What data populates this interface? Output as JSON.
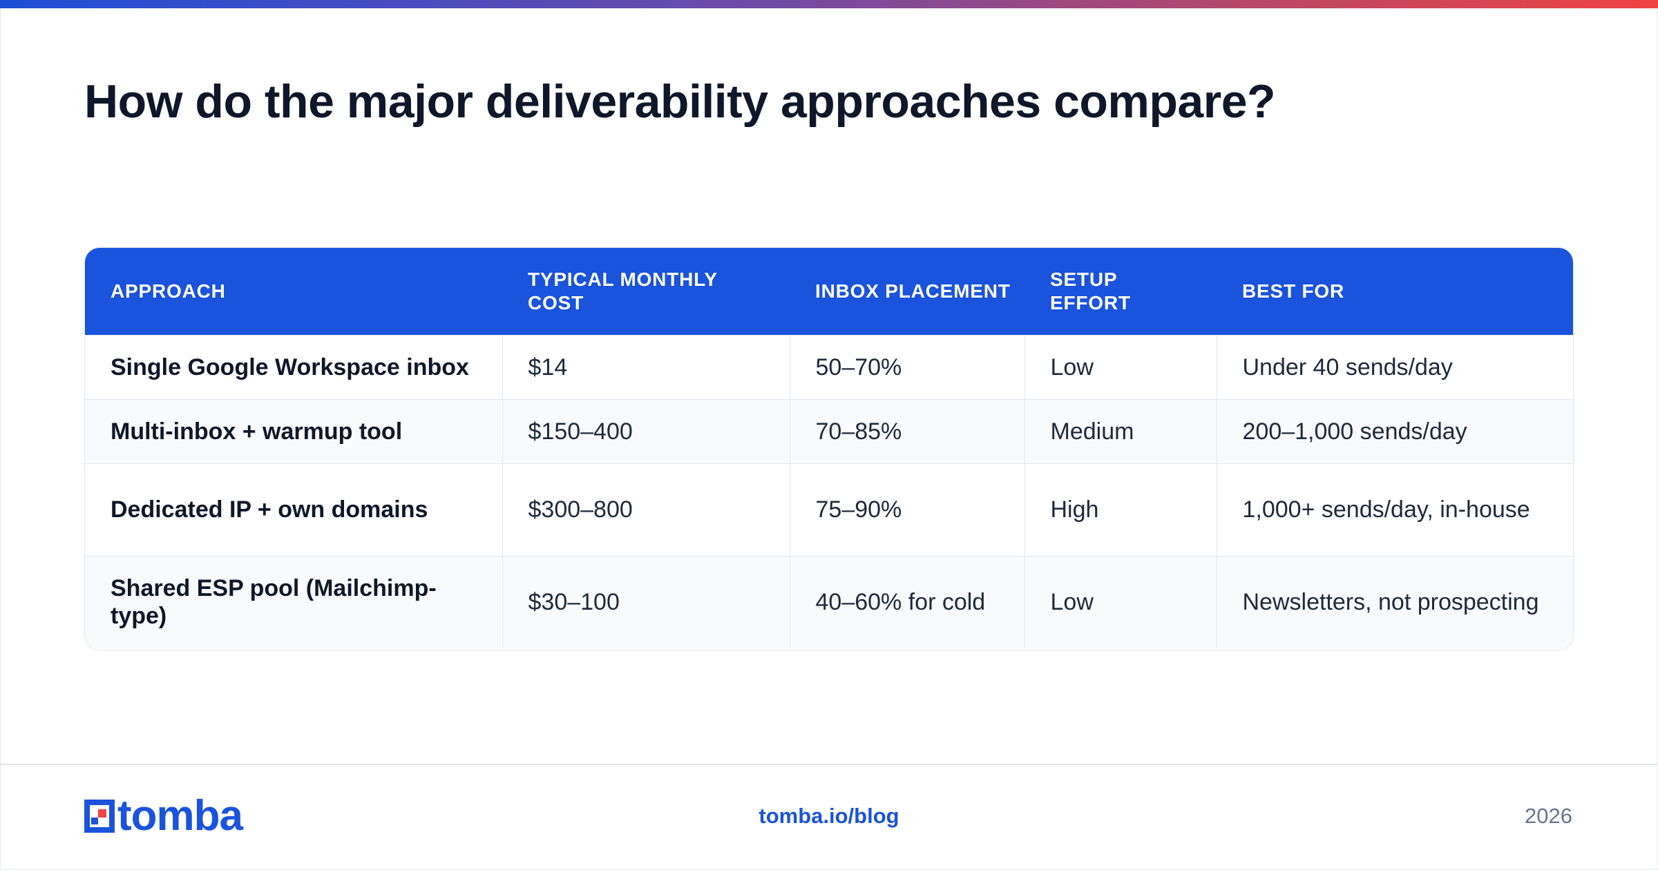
{
  "title": "How do the major deliverability approaches compare?",
  "table": {
    "headers": [
      "APPROACH",
      "TYPICAL MONTHLY COST",
      "INBOX PLACEMENT",
      "SETUP EFFORT",
      "BEST FOR"
    ],
    "rows": [
      [
        "Single Google Workspace inbox",
        "$14",
        "50–70%",
        "Low",
        "Under 40 sends/day"
      ],
      [
        "Multi-inbox + warmup tool",
        "$150–400",
        "70–85%",
        "Medium",
        "200–1,000 sends/day"
      ],
      [
        "Dedicated IP + own domains",
        "$300–800",
        "75–90%",
        "High",
        "1,000+ sends/day, in-house"
      ],
      [
        "Shared ESP pool (Mailchimp-type)",
        "$30–100",
        "40–60% for cold",
        "Low",
        "Newsletters, not prospecting"
      ]
    ]
  },
  "footer": {
    "logo_text": "tomba",
    "link": "tomba.io/blog",
    "year": "2026"
  },
  "colors": {
    "accent": "#1a53dc",
    "logo_red": "#ef4444",
    "title": "#0f172a",
    "muted": "#64748b"
  }
}
